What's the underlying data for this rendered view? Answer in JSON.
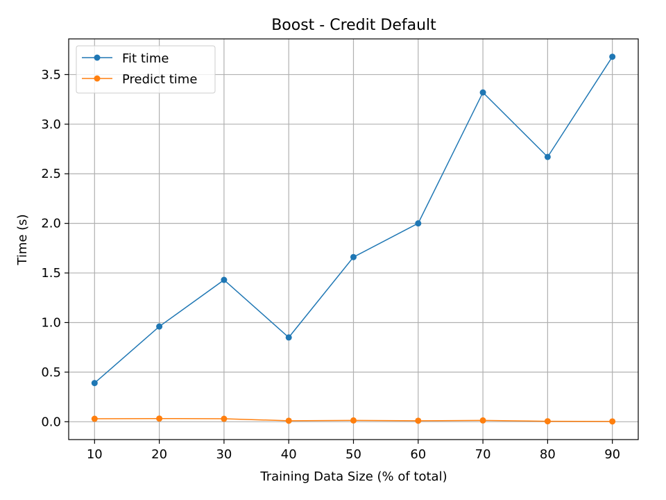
{
  "chart_data": {
    "type": "line",
    "title": "Boost - Credit Default",
    "xlabel": "Training Data Size (% of total)",
    "ylabel": "Time (s)",
    "x": [
      10,
      20,
      30,
      40,
      50,
      60,
      70,
      80,
      90
    ],
    "xlim": [
      6,
      94
    ],
    "ylim": [
      -0.18,
      3.86
    ],
    "xticks": [
      10,
      20,
      30,
      40,
      50,
      60,
      70,
      80,
      90
    ],
    "yticks": [
      0.0,
      0.5,
      1.0,
      1.5,
      2.0,
      2.5,
      3.0,
      3.5
    ],
    "ytick_labels": [
      "0.0",
      "0.5",
      "1.0",
      "1.5",
      "2.0",
      "2.5",
      "3.0",
      "3.5"
    ],
    "grid": true,
    "legend_position": "top-left",
    "series": [
      {
        "name": "Fit time",
        "color": "#1f77b4",
        "marker": "circle",
        "values": [
          0.39,
          0.96,
          1.43,
          0.85,
          1.66,
          2.0,
          3.32,
          2.67,
          3.68
        ]
      },
      {
        "name": "Predict time",
        "color": "#ff7f0e",
        "marker": "circle",
        "values": [
          0.03,
          0.032,
          0.03,
          0.01,
          0.013,
          0.01,
          0.013,
          0.005,
          0.003
        ]
      }
    ]
  }
}
